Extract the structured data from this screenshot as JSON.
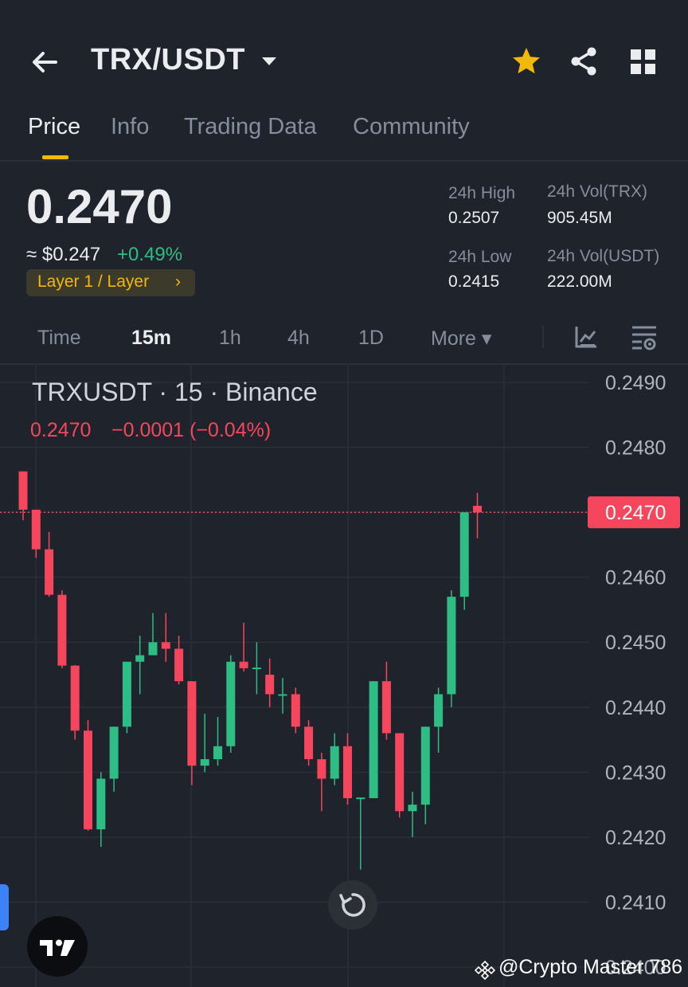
{
  "header": {
    "pair": "TRX/USDT",
    "icons": [
      "back-arrow-icon",
      "caret-down-icon",
      "star-icon",
      "share-icon",
      "grid-icon"
    ],
    "star_color": "#f0b90b"
  },
  "tabs": [
    {
      "label": "Price",
      "active": true
    },
    {
      "label": "Info",
      "active": false
    },
    {
      "label": "Trading Data",
      "active": false
    },
    {
      "label": "Community",
      "active": false
    }
  ],
  "price": {
    "last": "0.2470",
    "usd": "≈ $0.247",
    "change_pct": "+0.49%",
    "tag": "Layer 1 / Layer",
    "tag_chevron": "›"
  },
  "stats": {
    "high_label": "24h High",
    "high_value": "0.2507",
    "low_label": "24h Low",
    "low_value": "0.2415",
    "vol_trx_label": "24h Vol(TRX)",
    "vol_trx_value": "905.45M",
    "vol_usdt_label": "24h Vol(USDT)",
    "vol_usdt_value": "222.00M"
  },
  "intervals": [
    {
      "label": "Time",
      "active": false
    },
    {
      "label": "15m",
      "active": true
    },
    {
      "label": "1h",
      "active": false
    },
    {
      "label": "4h",
      "active": false
    },
    {
      "label": "1D",
      "active": false
    },
    {
      "label": "More ▾",
      "active": false
    }
  ],
  "chart_header": {
    "title": "TRXUSDT · 15 · Binance",
    "price": "0.2470",
    "change": "−0.0001 (−0.04%)"
  },
  "watermark": "@Crypto Master 786",
  "colors": {
    "up": "#2ebd85",
    "down": "#f6465d",
    "accent": "#f0b90b",
    "background": "#1f232b"
  },
  "chart_data": {
    "type": "candlestick",
    "y_ticks": [
      "0.2490",
      "0.2480",
      "0.2470",
      "0.2460",
      "0.2450",
      "0.2440",
      "0.2430",
      "0.2420",
      "0.2410",
      "0.2400"
    ],
    "ylim": [
      0.24,
      0.2491
    ],
    "last_price_label": "0.2470",
    "last_price": 0.247,
    "candles": [
      {
        "o": 0.24763,
        "h": 0.24763,
        "l": 0.24688,
        "c": 0.24704
      },
      {
        "o": 0.24704,
        "h": 0.24704,
        "l": 0.2463,
        "c": 0.24643
      },
      {
        "o": 0.24643,
        "h": 0.2467,
        "l": 0.2457,
        "c": 0.24573
      },
      {
        "o": 0.24573,
        "h": 0.2458,
        "l": 0.2446,
        "c": 0.24464
      },
      {
        "o": 0.24464,
        "h": 0.24465,
        "l": 0.2435,
        "c": 0.24364
      },
      {
        "o": 0.24364,
        "h": 0.2438,
        "l": 0.2421,
        "c": 0.24212
      },
      {
        "o": 0.24212,
        "h": 0.243,
        "l": 0.24185,
        "c": 0.2429
      },
      {
        "o": 0.2429,
        "h": 0.2437,
        "l": 0.2427,
        "c": 0.2437
      },
      {
        "o": 0.2437,
        "h": 0.2447,
        "l": 0.2436,
        "c": 0.2447
      },
      {
        "o": 0.2447,
        "h": 0.2451,
        "l": 0.2442,
        "c": 0.2448
      },
      {
        "o": 0.2448,
        "h": 0.24545,
        "l": 0.2448,
        "c": 0.245
      },
      {
        "o": 0.245,
        "h": 0.24545,
        "l": 0.2447,
        "c": 0.2449
      },
      {
        "o": 0.2449,
        "h": 0.2451,
        "l": 0.24435,
        "c": 0.2444
      },
      {
        "o": 0.2444,
        "h": 0.2444,
        "l": 0.2428,
        "c": 0.2431
      },
      {
        "o": 0.2431,
        "h": 0.2439,
        "l": 0.243,
        "c": 0.2432
      },
      {
        "o": 0.2432,
        "h": 0.24385,
        "l": 0.2431,
        "c": 0.2434
      },
      {
        "o": 0.2434,
        "h": 0.2448,
        "l": 0.2433,
        "c": 0.2447
      },
      {
        "o": 0.2447,
        "h": 0.2453,
        "l": 0.24455,
        "c": 0.2446
      },
      {
        "o": 0.2446,
        "h": 0.245,
        "l": 0.2442,
        "c": 0.24461
      },
      {
        "o": 0.2445,
        "h": 0.24475,
        "l": 0.244,
        "c": 0.2442
      },
      {
        "o": 0.2442,
        "h": 0.24445,
        "l": 0.2439,
        "c": 0.2442
      },
      {
        "o": 0.2442,
        "h": 0.2443,
        "l": 0.2436,
        "c": 0.2437
      },
      {
        "o": 0.2437,
        "h": 0.2438,
        "l": 0.2431,
        "c": 0.2432
      },
      {
        "o": 0.2432,
        "h": 0.2433,
        "l": 0.2424,
        "c": 0.2429
      },
      {
        "o": 0.2429,
        "h": 0.2436,
        "l": 0.2428,
        "c": 0.2434
      },
      {
        "o": 0.2434,
        "h": 0.2436,
        "l": 0.2425,
        "c": 0.2426
      },
      {
        "o": 0.2426,
        "h": 0.2426,
        "l": 0.2415,
        "c": 0.24261
      },
      {
        "o": 0.2426,
        "h": 0.2444,
        "l": 0.2426,
        "c": 0.2444
      },
      {
        "o": 0.2444,
        "h": 0.2447,
        "l": 0.2435,
        "c": 0.2436
      },
      {
        "o": 0.2436,
        "h": 0.2436,
        "l": 0.2423,
        "c": 0.2424
      },
      {
        "o": 0.2424,
        "h": 0.2427,
        "l": 0.242,
        "c": 0.2425
      },
      {
        "o": 0.2425,
        "h": 0.2437,
        "l": 0.2422,
        "c": 0.2437
      },
      {
        "o": 0.2437,
        "h": 0.2443,
        "l": 0.2433,
        "c": 0.2442
      },
      {
        "o": 0.2442,
        "h": 0.2458,
        "l": 0.244,
        "c": 0.2457
      },
      {
        "o": 0.2457,
        "h": 0.247,
        "l": 0.2455,
        "c": 0.247
      },
      {
        "o": 0.2471,
        "h": 0.2473,
        "l": 0.2466,
        "c": 0.247
      }
    ]
  }
}
